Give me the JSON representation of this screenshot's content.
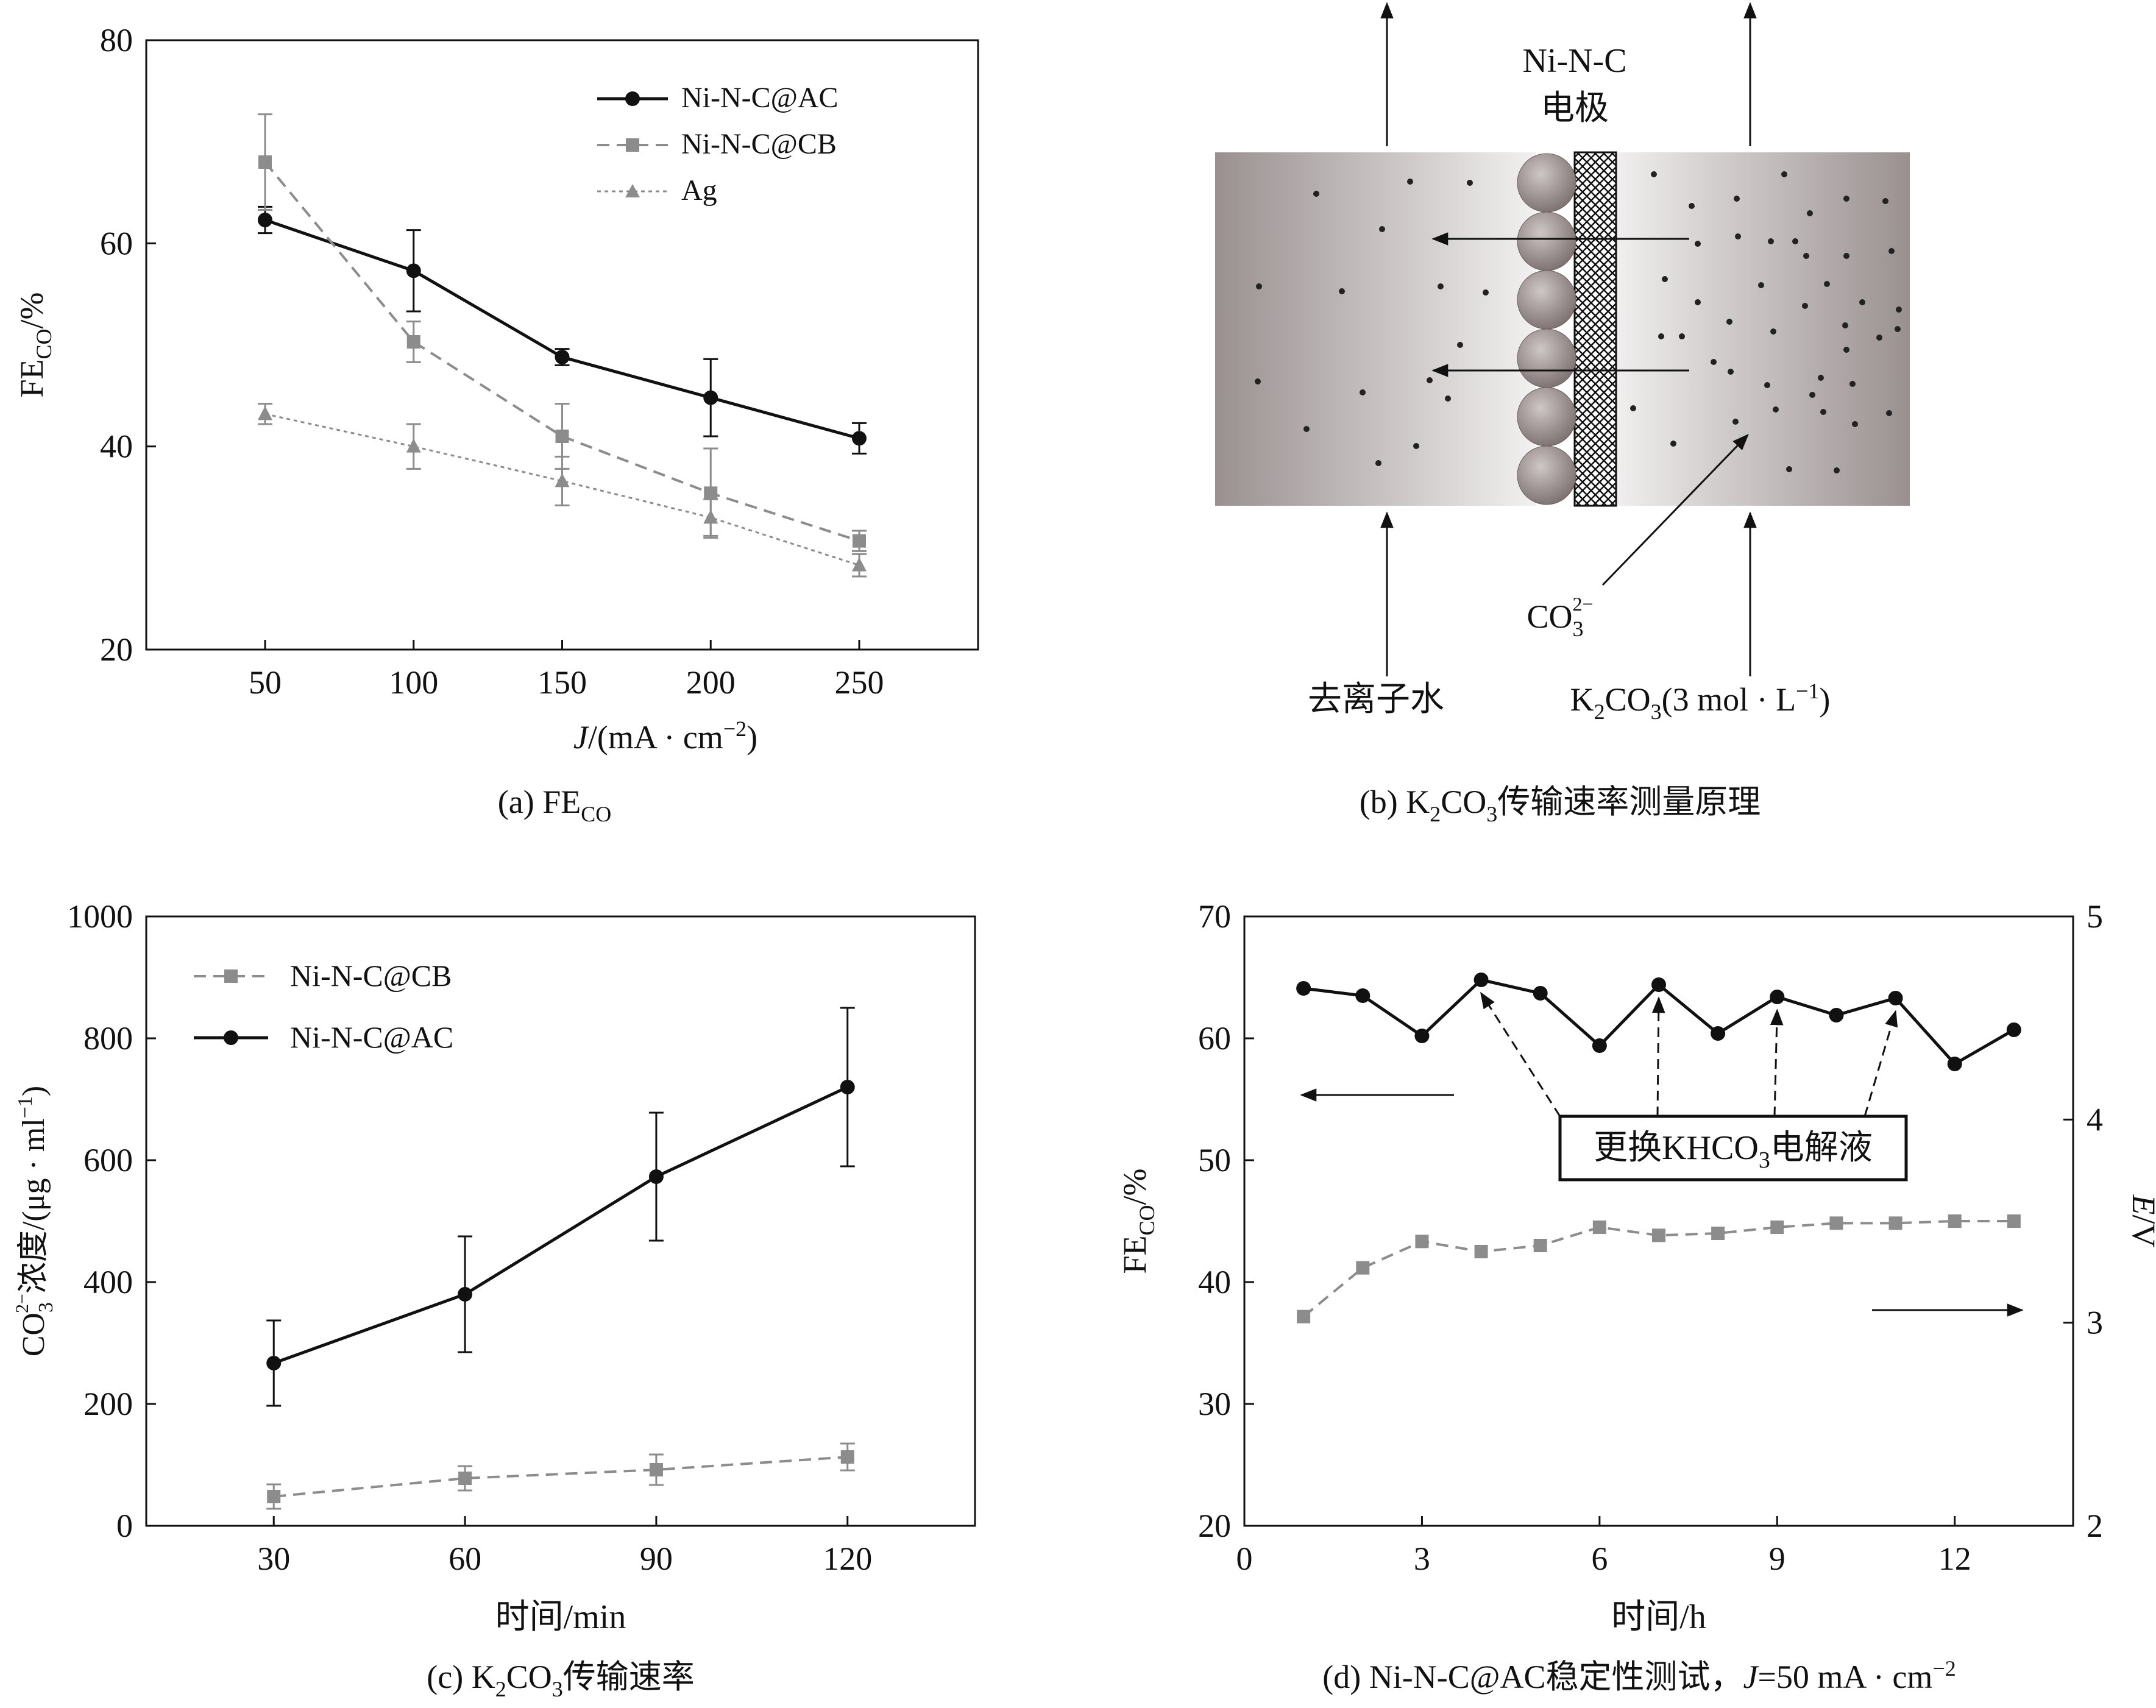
{
  "colors": {
    "black": "#111111",
    "gray": "#8c8c8c",
    "panel_b_gray_dark": "#9a9090",
    "panel_b_gray_light": "#f2f0f0"
  },
  "chart_data": [
    {
      "id": "a",
      "type": "line",
      "caption": "(a) FE",
      "caption_sub": "CO",
      "xlabel_italic": "J",
      "xlabel": "/(mA · cm",
      "xlabel_sup": "−2",
      "xlabel_end": ")",
      "ylabel": "FE",
      "ylabel_sub": "CO",
      "ylabel_end": "/%",
      "xlim": [
        10,
        290
      ],
      "ylim": [
        20,
        80
      ],
      "xticks": [
        50,
        100,
        150,
        200,
        250
      ],
      "yticks": [
        20,
        40,
        60,
        80
      ],
      "x": [
        50,
        100,
        150,
        200,
        250
      ],
      "series": [
        {
          "name": "Ni-N-C@AC",
          "marker": "circle",
          "line": "solid",
          "color": "#111111",
          "values": [
            62.3,
            57.3,
            48.8,
            44.8,
            40.8
          ],
          "err": [
            1.3,
            4.0,
            0.8,
            3.8,
            1.5
          ]
        },
        {
          "name": "Ni-N-C@CB",
          "marker": "square",
          "line": "dashed",
          "color": "#8c8c8c",
          "values": [
            68.0,
            50.3,
            41.0,
            35.4,
            30.7
          ],
          "err": [
            4.7,
            2.0,
            3.2,
            4.4,
            1.0
          ]
        },
        {
          "name": "Ag",
          "marker": "triangle",
          "line": "dotted",
          "color": "#8c8c8c",
          "values": [
            43.2,
            40.0,
            36.6,
            33.0,
            28.3
          ],
          "err": [
            1.0,
            2.2,
            2.4,
            1.8,
            1.1
          ]
        }
      ]
    },
    {
      "id": "c",
      "type": "line",
      "caption": "(c) K",
      "caption_sub1": "2",
      "caption_mid": "CO",
      "caption_sub2": "3",
      "caption_end": "传输速率",
      "xlabel": "时间/min",
      "ylabel": "CO",
      "ylabel_sub": "3",
      "ylabel_sup": "2−",
      "ylabel_end": "浓度/(μg · ml",
      "ylabel_sup2": "−1",
      "ylabel_end2": ")",
      "xlim": [
        10,
        140
      ],
      "ylim": [
        0,
        1000
      ],
      "xticks": [
        30,
        60,
        90,
        120
      ],
      "yticks": [
        0,
        200,
        400,
        600,
        800,
        1000
      ],
      "x": [
        30,
        60,
        90,
        120
      ],
      "series": [
        {
          "name": "Ni-N-C@CB",
          "marker": "square",
          "line": "dashed",
          "color": "#8c8c8c",
          "values": [
            48,
            78,
            92,
            113
          ],
          "err": [
            20,
            20,
            25,
            22
          ]
        },
        {
          "name": "Ni-N-C@AC",
          "marker": "circle",
          "line": "solid",
          "color": "#111111",
          "values": [
            267,
            380,
            573,
            720
          ],
          "err": [
            70,
            95,
            105,
            130
          ]
        }
      ]
    },
    {
      "id": "d",
      "type": "line",
      "caption": "(d) Ni-N-C@AC稳定性测试，",
      "caption_italic": "J",
      "caption_end": "=50 mA · cm",
      "caption_sup": "−2",
      "xlabel": "时间/h",
      "ylabel": "FE",
      "ylabel_sub": "CO",
      "ylabel_end": "/%",
      "y2label_italic": "E",
      "y2label": "/V",
      "xlim": [
        0,
        14
      ],
      "ylim": [
        20,
        70
      ],
      "y2lim": [
        2,
        5
      ],
      "xticks": [
        0,
        3,
        6,
        9,
        12
      ],
      "yticks": [
        20,
        30,
        40,
        50,
        60,
        70
      ],
      "y2ticks": [
        2,
        3,
        4,
        5
      ],
      "x": [
        1,
        2,
        3,
        4,
        5,
        6,
        7,
        8,
        9,
        10,
        11,
        12,
        13
      ],
      "series": [
        {
          "name": "FE_CO",
          "axis": "left",
          "marker": "circle",
          "line": "solid",
          "color": "#111111",
          "values": [
            64.1,
            63.5,
            60.2,
            64.8,
            63.7,
            59.4,
            64.4,
            60.4,
            63.4,
            61.9,
            63.3,
            57.9,
            60.7
          ]
        },
        {
          "name": "E",
          "axis": "right",
          "marker": "square",
          "line": "dashed",
          "color": "#8c8c8c",
          "values": [
            3.03,
            3.27,
            3.4,
            3.35,
            3.38,
            3.47,
            3.43,
            3.44,
            3.47,
            3.49,
            3.49,
            3.5,
            3.5
          ]
        }
      ],
      "annotation": "更换KHCO",
      "annotation_sub": "3",
      "annotation_end": "电解液",
      "annotation_points": [
        4,
        7,
        9,
        11
      ]
    }
  ],
  "panel_b": {
    "caption": "(b) K",
    "caption_sub1": "2",
    "caption_mid": "CO",
    "caption_sub2": "3",
    "caption_end": "传输速率测量原理",
    "electrode_line1": "Ni-N-C",
    "electrode_line2": "电极",
    "left_label": "去离子水",
    "right_label_a": "K",
    "right_label_sub1": "2",
    "right_label_b": "CO",
    "right_label_sub2": "3",
    "right_label_c": "(3 mol · L",
    "right_label_sup": "−1",
    "right_label_d": ")",
    "ion_label": "CO",
    "ion_sub": "3",
    "ion_sup": "2−"
  }
}
